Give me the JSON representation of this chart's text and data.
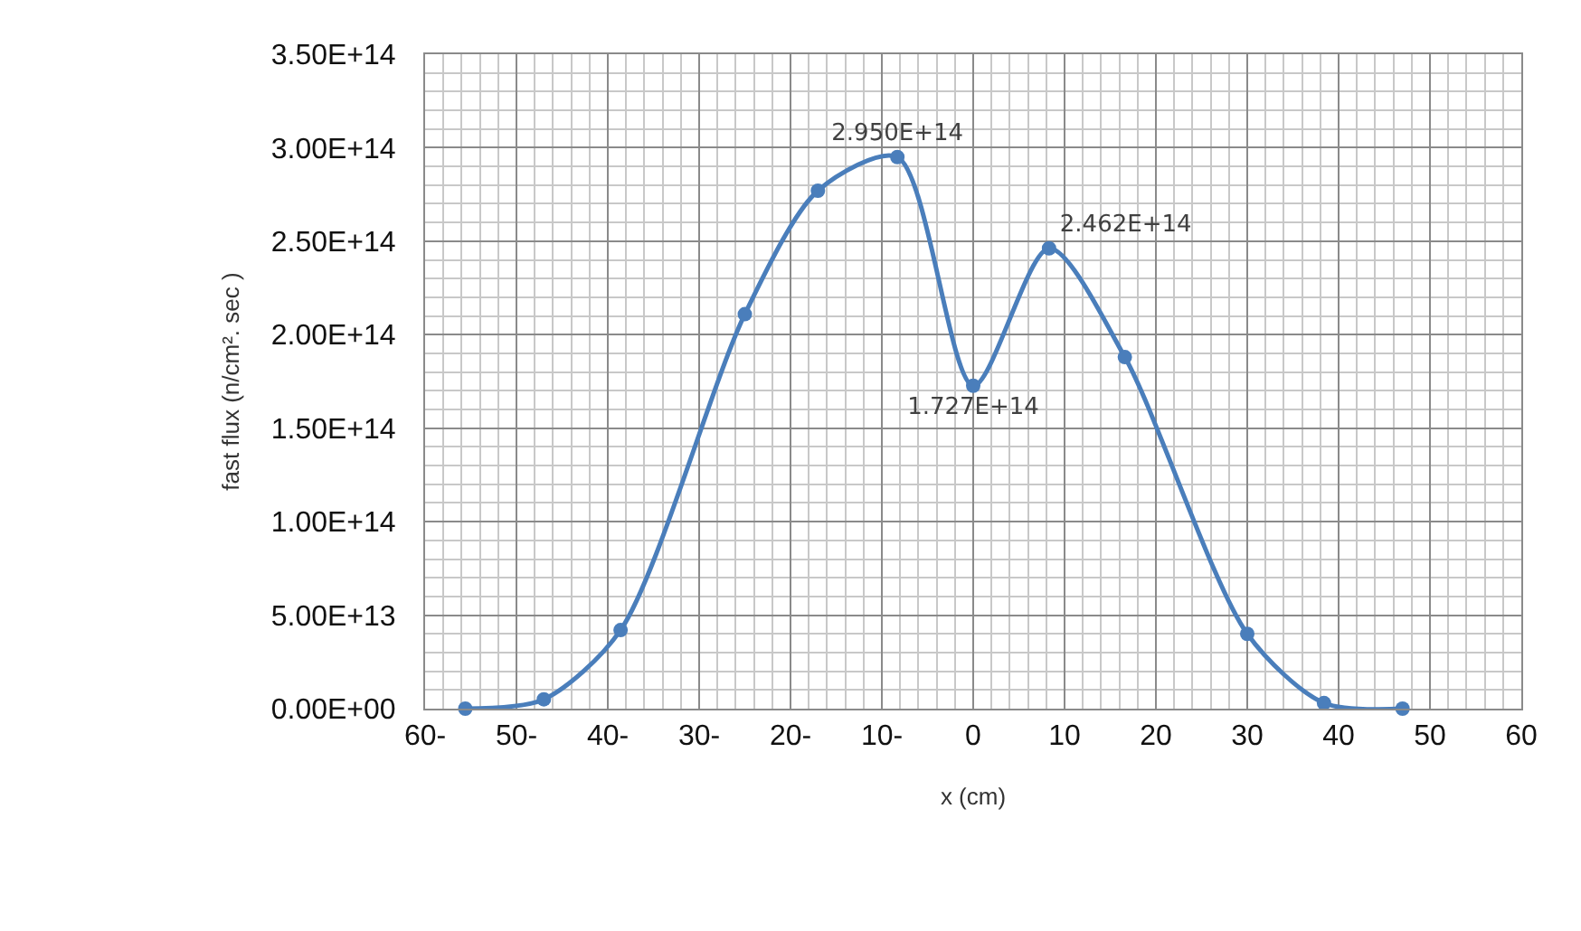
{
  "chart_data": {
    "type": "line",
    "xlabel": "x (cm)",
    "ylabel": "fast flux (n/cm². sec )",
    "x": [
      -55.6,
      -47,
      -38.6,
      -25,
      -17,
      -8.3,
      0,
      8.3,
      16.6,
      30,
      38.4,
      47
    ],
    "series": [
      {
        "color": "#4a7ebb",
        "values": [
          0,
          5000000000000.0,
          42000000000000.0,
          211000000000000.0,
          277000000000000.0,
          295000000000000.0,
          172700000000000.0,
          246200000000000.0,
          188000000000000.0,
          40000000000000.0,
          3000000000000.0,
          0
        ],
        "value_labels": [
          null,
          null,
          null,
          null,
          null,
          "2.950E+14",
          "1.727E+14",
          "2.462E+14",
          null,
          null,
          null,
          null
        ]
      }
    ],
    "xlim": [
      -60,
      60
    ],
    "xticks": [
      {
        "value": -60,
        "label": "60-"
      },
      {
        "value": -50,
        "label": "50-"
      },
      {
        "value": -40,
        "label": "40-"
      },
      {
        "value": -30,
        "label": "30-"
      },
      {
        "value": -20,
        "label": "20-"
      },
      {
        "value": -10,
        "label": "10-"
      },
      0,
      10,
      20,
      30,
      40,
      50,
      60
    ],
    "ylim": [
      0,
      350000000000000.0
    ],
    "yticks": [
      {
        "value": 0,
        "label": "0.00E+00"
      },
      {
        "value": 50000000000000.0,
        "label": "5.00E+13"
      },
      {
        "value": 100000000000000.0,
        "label": "1.00E+14"
      },
      {
        "value": 150000000000000.0,
        "label": "1.50E+14"
      },
      {
        "value": 200000000000000.0,
        "label": "2.00E+14"
      },
      {
        "value": 250000000000000.0,
        "label": "2.50E+14"
      },
      {
        "value": 300000000000000.0,
        "label": "3.00E+14"
      },
      {
        "value": 350000000000000.0,
        "label": "3.50E+14"
      }
    ],
    "grid": true,
    "marker": "circle",
    "line_style": "solid"
  }
}
